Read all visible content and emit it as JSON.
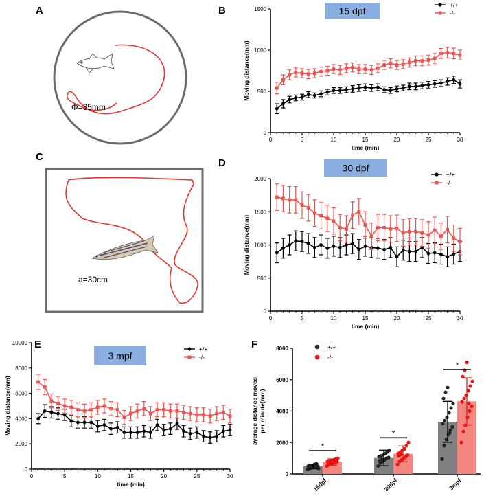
{
  "panels": {
    "A": {
      "label": "A",
      "annotation": "Φ=35mm"
    },
    "C": {
      "label": "C",
      "annotation": "a=30cm"
    }
  },
  "chart_data": [
    {
      "id": "B",
      "panel": "B",
      "type": "line",
      "title": "15 dpf",
      "xlabel": "time (min)",
      "ylabel": "Moving distance(mm)",
      "xlim": [
        0,
        30
      ],
      "ylim": [
        0,
        1500
      ],
      "xticks": [
        0,
        5,
        10,
        15,
        20,
        25,
        30
      ],
      "yticks": [
        0,
        500,
        1000,
        1500
      ],
      "legend_position": "top-right",
      "x": [
        1,
        2,
        3,
        4,
        5,
        6,
        7,
        8,
        9,
        10,
        11,
        12,
        13,
        14,
        15,
        16,
        17,
        18,
        19,
        20,
        21,
        22,
        23,
        24,
        25,
        26,
        27,
        28,
        29,
        30
      ],
      "series": [
        {
          "name": "+/+",
          "color": "#000000",
          "marker": "circle",
          "values": [
            290,
            350,
            400,
            420,
            430,
            460,
            450,
            470,
            490,
            510,
            510,
            520,
            530,
            540,
            550,
            540,
            550,
            520,
            510,
            530,
            540,
            560,
            560,
            570,
            580,
            590,
            600,
            620,
            640,
            590
          ],
          "error": [
            60,
            50,
            40,
            35,
            35,
            35,
            30,
            35,
            35,
            35,
            35,
            35,
            40,
            40,
            40,
            40,
            40,
            35,
            35,
            35,
            35,
            40,
            40,
            40,
            40,
            40,
            40,
            45,
            45,
            50
          ]
        },
        {
          "name": "-/-",
          "color": "#ef5350",
          "marker": "square",
          "values": [
            540,
            640,
            700,
            730,
            720,
            710,
            720,
            740,
            750,
            770,
            760,
            780,
            790,
            770,
            770,
            760,
            780,
            820,
            840,
            820,
            830,
            850,
            870,
            870,
            880,
            900,
            960,
            970,
            960,
            940
          ],
          "error": [
            70,
            60,
            60,
            55,
            55,
            55,
            55,
            55,
            55,
            55,
            55,
            55,
            55,
            55,
            55,
            55,
            55,
            55,
            55,
            55,
            55,
            55,
            60,
            60,
            60,
            60,
            60,
            65,
            65,
            60
          ]
        }
      ]
    },
    {
      "id": "D",
      "panel": "D",
      "type": "line",
      "title": "30 dpf",
      "xlabel": "time (min)",
      "ylabel": "Moving distance(mm)",
      "xlim": [
        0,
        30
      ],
      "ylim": [
        0,
        2000
      ],
      "xticks": [
        0,
        5,
        10,
        15,
        20,
        25,
        30
      ],
      "yticks": [
        0,
        500,
        1000,
        1500,
        2000
      ],
      "legend_position": "top-right",
      "x": [
        1,
        2,
        3,
        4,
        5,
        6,
        7,
        8,
        9,
        10,
        11,
        12,
        13,
        14,
        15,
        16,
        17,
        18,
        19,
        20,
        21,
        22,
        23,
        24,
        25,
        26,
        27,
        28,
        29,
        30
      ],
      "series": [
        {
          "name": "+/+",
          "color": "#000000",
          "marker": "circle",
          "values": [
            880,
            950,
            1000,
            1060,
            1050,
            1020,
            960,
            1000,
            950,
            980,
            960,
            1000,
            1020,
            930,
            980,
            960,
            950,
            930,
            960,
            820,
            920,
            900,
            900,
            960,
            870,
            880,
            860,
            820,
            860,
            900
          ],
          "error": [
            150,
            150,
            150,
            150,
            150,
            150,
            150,
            150,
            150,
            150,
            150,
            150,
            150,
            150,
            150,
            150,
            150,
            150,
            150,
            150,
            150,
            150,
            150,
            150,
            150,
            150,
            150,
            150,
            150,
            150
          ]
        },
        {
          "name": "-/-",
          "color": "#ef5350",
          "marker": "square",
          "values": [
            1720,
            1700,
            1680,
            1680,
            1600,
            1560,
            1480,
            1440,
            1400,
            1360,
            1260,
            1240,
            1450,
            1500,
            1300,
            1130,
            1260,
            1260,
            1240,
            1250,
            1180,
            1200,
            1200,
            1180,
            1150,
            1220,
            1130,
            1230,
            1100,
            1050
          ],
          "error": [
            200,
            200,
            200,
            200,
            200,
            200,
            200,
            200,
            200,
            200,
            200,
            200,
            200,
            200,
            200,
            200,
            200,
            200,
            200,
            200,
            200,
            200,
            200,
            200,
            200,
            200,
            200,
            200,
            200,
            200
          ]
        }
      ]
    },
    {
      "id": "E",
      "panel": "E",
      "type": "line",
      "title": "3 mpf",
      "xlabel": "time (min)",
      "ylabel": "Moving distance(mm)",
      "xlim": [
        0,
        30
      ],
      "ylim": [
        0,
        10000
      ],
      "xticks": [
        0,
        5,
        10,
        15,
        20,
        25,
        30
      ],
      "yticks": [
        0,
        2000,
        4000,
        6000,
        8000,
        10000
      ],
      "legend_position": "top-right",
      "x": [
        1,
        2,
        3,
        4,
        5,
        6,
        7,
        8,
        9,
        10,
        11,
        12,
        13,
        14,
        15,
        16,
        17,
        18,
        19,
        20,
        21,
        22,
        23,
        24,
        25,
        26,
        27,
        28,
        29,
        30
      ],
      "series": [
        {
          "name": "+/+",
          "color": "#000000",
          "marker": "circle",
          "values": [
            4000,
            4600,
            4500,
            4400,
            4300,
            3800,
            3700,
            3700,
            3700,
            3400,
            3500,
            3200,
            3300,
            2900,
            2900,
            2900,
            3000,
            2900,
            3500,
            3100,
            3200,
            3600,
            3000,
            2800,
            2900,
            2600,
            2500,
            2600,
            3000,
            3100
          ],
          "error": [
            400,
            500,
            450,
            450,
            450,
            450,
            450,
            450,
            450,
            450,
            450,
            450,
            450,
            450,
            450,
            450,
            450,
            450,
            450,
            450,
            450,
            450,
            450,
            450,
            450,
            450,
            450,
            450,
            450,
            450
          ]
        },
        {
          "name": "-/-",
          "color": "#ef5350",
          "marker": "square",
          "values": [
            6900,
            6500,
            5400,
            5200,
            5000,
            4900,
            4700,
            4600,
            4700,
            4900,
            5000,
            4800,
            4700,
            4100,
            4400,
            4600,
            4800,
            4400,
            4700,
            4700,
            4600,
            4600,
            4500,
            4400,
            4300,
            4300,
            4200,
            4400,
            4500,
            4200
          ],
          "error": [
            600,
            600,
            550,
            550,
            550,
            550,
            550,
            550,
            550,
            550,
            550,
            550,
            550,
            550,
            550,
            550,
            550,
            550,
            550,
            550,
            550,
            550,
            550,
            550,
            550,
            550,
            550,
            550,
            550,
            550
          ]
        }
      ]
    },
    {
      "id": "F",
      "panel": "F",
      "type": "bar",
      "ylabel_lines": [
        "average distance moved",
        "per minute(mm)"
      ],
      "categories": [
        "15dpf",
        "30dpf",
        "3mpf"
      ],
      "ylim": [
        0,
        8000
      ],
      "yticks": [
        0,
        2000,
        4000,
        6000,
        8000
      ],
      "legend_position": "top-left",
      "series": [
        {
          "name": "+/+",
          "color": "#808080",
          "point_color": "#222222",
          "values": [
            480,
            1020,
            3320
          ],
          "sd": [
            150,
            500,
            1300
          ],
          "points": [
            [
              300,
              350,
              400,
              420,
              450,
              480,
              500,
              520,
              550,
              600,
              650,
              350,
              420,
              500
            ],
            [
              500,
              700,
              800,
              900,
              1000,
              1050,
              1100,
              1150,
              1200,
              1300,
              1400,
              1500,
              850,
              950
            ],
            [
              950,
              1800,
              2200,
              2500,
              2800,
              3000,
              3200,
              3400,
              3600,
              3900,
              4200,
              4500,
              4800,
              5200,
              5500,
              2600
            ]
          ]
        },
        {
          "name": "-/-",
          "color": "#f4877f",
          "point_color": "#ee1111",
          "values": [
            760,
            1280,
            4620
          ],
          "sd": [
            200,
            500,
            1500
          ],
          "points": [
            [
              500,
              600,
              650,
              700,
              750,
              780,
              800,
              820,
              850,
              900,
              950,
              1000,
              700,
              800
            ],
            [
              600,
              800,
              900,
              1000,
              1100,
              1200,
              1300,
              1400,
              1500,
              1600,
              1800,
              2000,
              1150,
              1250
            ],
            [
              2000,
              2700,
              3100,
              3600,
              4000,
              4300,
              4600,
              4800,
              5000,
              5300,
              5600,
              5900,
              6200,
              6600,
              7100,
              4500
            ]
          ]
        }
      ],
      "significance": [
        "*",
        "*",
        "*"
      ]
    }
  ]
}
